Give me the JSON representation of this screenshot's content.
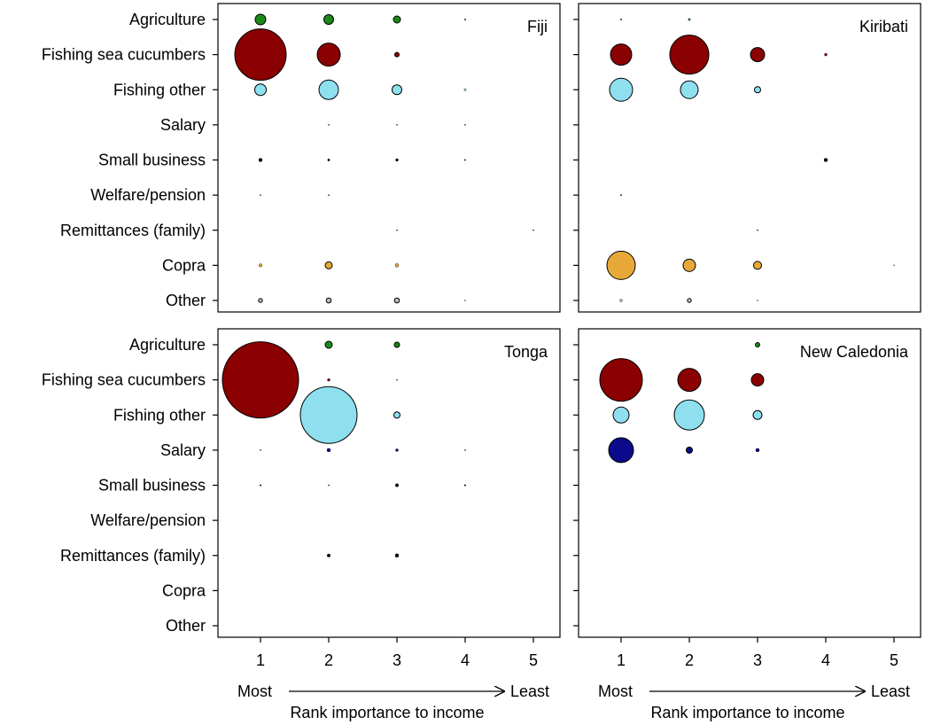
{
  "chart_data": {
    "type": "scatter",
    "xlabel": "Rank importance to income",
    "x_ticks": [
      "1",
      "2",
      "3",
      "4",
      "5"
    ],
    "x_end_labels": {
      "left": "Most",
      "right": "Least"
    },
    "categories": [
      "Agriculture",
      "Fishing sea cucumbers",
      "Fishing other",
      "Salary",
      "Small business",
      "Welfare/pension",
      "Remittances (family)",
      "Copra",
      "Other"
    ],
    "category_colors": {
      "Agriculture": "#1a8a1a",
      "Fishing sea cucumbers": "#8b0000",
      "Fishing other": "#8ee0ef",
      "Salary": "#0a0a8a",
      "Small business": "#000000",
      "Welfare/pension": "#000000",
      "Remittances (family)": "#000000",
      "Copra": "#e8a838",
      "Other": "#bbbbbb"
    },
    "panels": [
      {
        "title": "Fiji",
        "points": [
          {
            "category": "Agriculture",
            "rank": 1,
            "r": 6
          },
          {
            "category": "Agriculture",
            "rank": 2,
            "r": 5.5
          },
          {
            "category": "Agriculture",
            "rank": 3,
            "r": 4
          },
          {
            "category": "Agriculture",
            "rank": 4,
            "r": 0.8
          },
          {
            "category": "Fishing sea cucumbers",
            "rank": 1,
            "r": 29
          },
          {
            "category": "Fishing sea cucumbers",
            "rank": 2,
            "r": 13
          },
          {
            "category": "Fishing sea cucumbers",
            "rank": 3,
            "r": 2.5
          },
          {
            "category": "Fishing other",
            "rank": 1,
            "r": 6.5
          },
          {
            "category": "Fishing other",
            "rank": 2,
            "r": 11
          },
          {
            "category": "Fishing other",
            "rank": 3,
            "r": 5.5
          },
          {
            "category": "Fishing other",
            "rank": 4,
            "r": 1.2
          },
          {
            "category": "Salary",
            "rank": 2,
            "r": 0.6
          },
          {
            "category": "Salary",
            "rank": 3,
            "r": 0.6
          },
          {
            "category": "Salary",
            "rank": 4,
            "r": 0.6
          },
          {
            "category": "Small business",
            "rank": 1,
            "r": 2
          },
          {
            "category": "Small business",
            "rank": 2,
            "r": 1.2
          },
          {
            "category": "Small business",
            "rank": 3,
            "r": 1.5
          },
          {
            "category": "Small business",
            "rank": 4,
            "r": 0.7
          },
          {
            "category": "Welfare/pension",
            "rank": 1,
            "r": 0.6
          },
          {
            "category": "Welfare/pension",
            "rank": 2,
            "r": 0.6
          },
          {
            "category": "Remittances (family)",
            "rank": 3,
            "r": 0.6
          },
          {
            "category": "Remittances (family)",
            "rank": 5,
            "r": 0.6
          },
          {
            "category": "Copra",
            "rank": 1,
            "r": 1.8
          },
          {
            "category": "Copra",
            "rank": 2,
            "r": 4
          },
          {
            "category": "Copra",
            "rank": 3,
            "r": 2
          },
          {
            "category": "Other",
            "rank": 1,
            "r": 2.2
          },
          {
            "category": "Other",
            "rank": 2,
            "r": 2.8
          },
          {
            "category": "Other",
            "rank": 3,
            "r": 2.8
          },
          {
            "category": "Other",
            "rank": 4,
            "r": 0.6
          }
        ]
      },
      {
        "title": "Kiribati",
        "points": [
          {
            "category": "Agriculture",
            "rank": 1,
            "r": 0.8
          },
          {
            "category": "Agriculture",
            "rank": 2,
            "r": 1.2
          },
          {
            "category": "Fishing sea cucumbers",
            "rank": 1,
            "r": 12
          },
          {
            "category": "Fishing sea cucumbers",
            "rank": 2,
            "r": 22
          },
          {
            "category": "Fishing sea cucumbers",
            "rank": 3,
            "r": 8
          },
          {
            "category": "Fishing sea cucumbers",
            "rank": 4,
            "r": 1.5
          },
          {
            "category": "Fishing other",
            "rank": 1,
            "r": 13
          },
          {
            "category": "Fishing other",
            "rank": 2,
            "r": 10
          },
          {
            "category": "Fishing other",
            "rank": 3,
            "r": 3.5
          },
          {
            "category": "Small business",
            "rank": 4,
            "r": 2
          },
          {
            "category": "Welfare/pension",
            "rank": 1,
            "r": 0.7
          },
          {
            "category": "Remittances (family)",
            "rank": 3,
            "r": 0.6
          },
          {
            "category": "Copra",
            "rank": 1,
            "r": 16
          },
          {
            "category": "Copra",
            "rank": 2,
            "r": 7
          },
          {
            "category": "Copra",
            "rank": 3,
            "r": 4.5
          },
          {
            "category": "Copra",
            "rank": 5,
            "r": 0.6
          },
          {
            "category": "Other",
            "rank": 1,
            "r": 1.5
          },
          {
            "category": "Other",
            "rank": 2,
            "r": 2.2
          },
          {
            "category": "Other",
            "rank": 3,
            "r": 0.6
          }
        ]
      },
      {
        "title": "Tonga",
        "points": [
          {
            "category": "Agriculture",
            "rank": 2,
            "r": 4
          },
          {
            "category": "Agriculture",
            "rank": 3,
            "r": 3
          },
          {
            "category": "Fishing sea cucumbers",
            "rank": 1,
            "r": 43
          },
          {
            "category": "Fishing sea cucumbers",
            "rank": 2,
            "r": 1.5
          },
          {
            "category": "Fishing sea cucumbers",
            "rank": 3,
            "r": 0.6
          },
          {
            "category": "Fishing other",
            "rank": 2,
            "r": 32
          },
          {
            "category": "Fishing other",
            "rank": 3,
            "r": 3.5
          },
          {
            "category": "Salary",
            "rank": 1,
            "r": 0.6
          },
          {
            "category": "Salary",
            "rank": 2,
            "r": 2
          },
          {
            "category": "Salary",
            "rank": 3,
            "r": 1.5
          },
          {
            "category": "Salary",
            "rank": 4,
            "r": 0.6
          },
          {
            "category": "Small business",
            "rank": 1,
            "r": 0.8
          },
          {
            "category": "Small business",
            "rank": 2,
            "r": 0.6
          },
          {
            "category": "Small business",
            "rank": 3,
            "r": 1.8
          },
          {
            "category": "Small business",
            "rank": 4,
            "r": 0.8
          },
          {
            "category": "Remittances (family)",
            "rank": 2,
            "r": 1.8
          },
          {
            "category": "Remittances (family)",
            "rank": 3,
            "r": 2
          }
        ]
      },
      {
        "title": "New Caledonia",
        "points": [
          {
            "category": "Agriculture",
            "rank": 3,
            "r": 2.5
          },
          {
            "category": "Fishing sea cucumbers",
            "rank": 1,
            "r": 24
          },
          {
            "category": "Fishing sea cucumbers",
            "rank": 2,
            "r": 13
          },
          {
            "category": "Fishing sea cucumbers",
            "rank": 3,
            "r": 7
          },
          {
            "category": "Fishing other",
            "rank": 1,
            "r": 9
          },
          {
            "category": "Fishing other",
            "rank": 2,
            "r": 17
          },
          {
            "category": "Fishing other",
            "rank": 3,
            "r": 5
          },
          {
            "category": "Salary",
            "rank": 1,
            "r": 14
          },
          {
            "category": "Salary",
            "rank": 2,
            "r": 3.5
          },
          {
            "category": "Salary",
            "rank": 3,
            "r": 2
          }
        ]
      }
    ]
  }
}
